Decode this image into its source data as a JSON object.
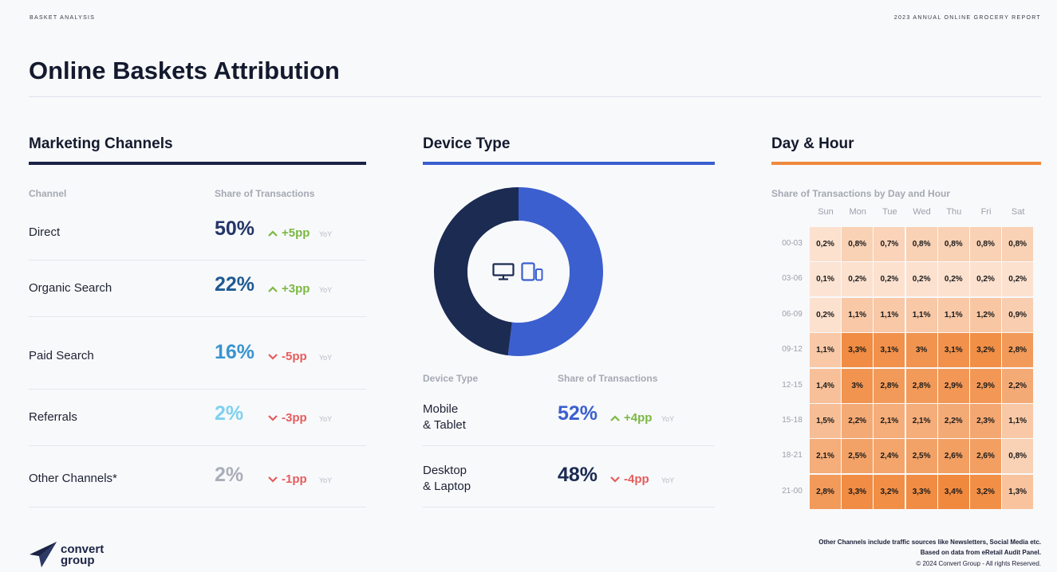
{
  "header": {
    "section_label": "BASKET ANALYSIS",
    "report_label": "2023 ANNUAL ONLINE GROCERY REPORT",
    "title": "Online Baskets Attribution"
  },
  "colors": {
    "navy": "#1b2b52",
    "blue": "#3b5fcf",
    "orange": "#f0893e",
    "up_green": "#7ab842",
    "down_red": "#e65c5c"
  },
  "marketing": {
    "title": "Marketing Channels",
    "col_channel": "Channel",
    "col_share": "Share of Transactions",
    "rows": [
      {
        "label": "Direct",
        "pct": "50%",
        "delta": "+5pp",
        "dir": "up",
        "yoy": "YoY",
        "color": "#233569"
      },
      {
        "label": "Organic Search",
        "pct": "22%",
        "delta": "+3pp",
        "dir": "up",
        "yoy": "YoY",
        "color": "#1f5a93"
      },
      {
        "label": "Paid Search",
        "pct": "16%",
        "delta": "-5pp",
        "dir": "down",
        "yoy": "YoY",
        "color": "#3a94cf"
      },
      {
        "label": "Referrals",
        "pct": "2%",
        "delta": "-3pp",
        "dir": "down",
        "yoy": "YoY",
        "color": "#7fd1ef"
      },
      {
        "label": "Other Channels*",
        "pct": "2%",
        "delta": "-1pp",
        "dir": "down",
        "yoy": "YoY",
        "color": "#a9aeb8"
      }
    ]
  },
  "device": {
    "title": "Device Type",
    "col_device": "Device Type",
    "col_share": "Share of Transactions",
    "icons": [
      "desktop-icon",
      "mobile-tablet-icon"
    ],
    "rows": [
      {
        "label_line1": "Mobile",
        "label_line2": "& Tablet",
        "pct": "52%",
        "delta": "+4pp",
        "dir": "up",
        "yoy": "YoY",
        "color": "#3b5fcf"
      },
      {
        "label_line1": "Desktop",
        "label_line2": "& Laptop",
        "pct": "48%",
        "delta": "-4pp",
        "dir": "down",
        "yoy": "YoY",
        "color": "#1b2b52"
      }
    ]
  },
  "dayhour": {
    "title": "Day & Hour",
    "subtitle": "Share of Transactions by Day and Hour"
  },
  "chart_data": [
    {
      "type": "pie",
      "categories": [
        "Mobile & Tablet",
        "Desktop & Laptop"
      ],
      "values": [
        52,
        48
      ],
      "colors": [
        "#3b5fcf",
        "#1b2b52"
      ],
      "donut": true
    },
    {
      "type": "heatmap",
      "x": [
        "Sun",
        "Mon",
        "Tue",
        "Wed",
        "Thu",
        "Fri",
        "Sat"
      ],
      "y": [
        "00-03",
        "03-06",
        "06-09",
        "09-12",
        "12-15",
        "15-18",
        "18-21",
        "21-00"
      ],
      "values": [
        [
          0.2,
          0.8,
          0.7,
          0.8,
          0.8,
          0.8,
          0.8
        ],
        [
          0.1,
          0.2,
          0.2,
          0.2,
          0.2,
          0.2,
          0.2
        ],
        [
          0.2,
          1.1,
          1.1,
          1.1,
          1.1,
          1.2,
          0.9
        ],
        [
          1.1,
          3.3,
          3.1,
          3.0,
          3.1,
          3.2,
          2.8
        ],
        [
          1.4,
          3.0,
          2.8,
          2.8,
          2.9,
          2.9,
          2.2
        ],
        [
          1.5,
          2.2,
          2.1,
          2.1,
          2.2,
          2.3,
          1.1
        ],
        [
          2.1,
          2.5,
          2.4,
          2.5,
          2.6,
          2.6,
          0.8
        ],
        [
          2.8,
          3.3,
          3.2,
          3.3,
          3.4,
          3.2,
          1.3
        ]
      ],
      "labels": [
        [
          "0,2%",
          "0,8%",
          "0,7%",
          "0,8%",
          "0,8%",
          "0,8%",
          "0,8%"
        ],
        [
          "0,1%",
          "0,2%",
          "0,2%",
          "0,2%",
          "0,2%",
          "0,2%",
          "0,2%"
        ],
        [
          "0,2%",
          "1,1%",
          "1,1%",
          "1,1%",
          "1,1%",
          "1,2%",
          "0,9%"
        ],
        [
          "1,1%",
          "3,3%",
          "3,1%",
          "3%",
          "3,1%",
          "3,2%",
          "2,8%"
        ],
        [
          "1,4%",
          "3%",
          "2,8%",
          "2,8%",
          "2,9%",
          "2,9%",
          "2,2%"
        ],
        [
          "1,5%",
          "2,2%",
          "2,1%",
          "2,1%",
          "2,2%",
          "2,3%",
          "1,1%"
        ],
        [
          "2,1%",
          "2,5%",
          "2,4%",
          "2,5%",
          "2,6%",
          "2,6%",
          "0,8%"
        ],
        [
          "2,8%",
          "3,3%",
          "3,2%",
          "3,3%",
          "3,4%",
          "3,2%",
          "1,3%"
        ]
      ]
    }
  ],
  "footer": {
    "note1": "Other Channels include traffic sources like Newsletters, Social Media etc.",
    "note2": "Based on data from eRetail Audit Panel.",
    "copyright": "© 2024 Convert Group - All rights Reserved.",
    "logo_line1": "convert",
    "logo_line2": "group"
  }
}
